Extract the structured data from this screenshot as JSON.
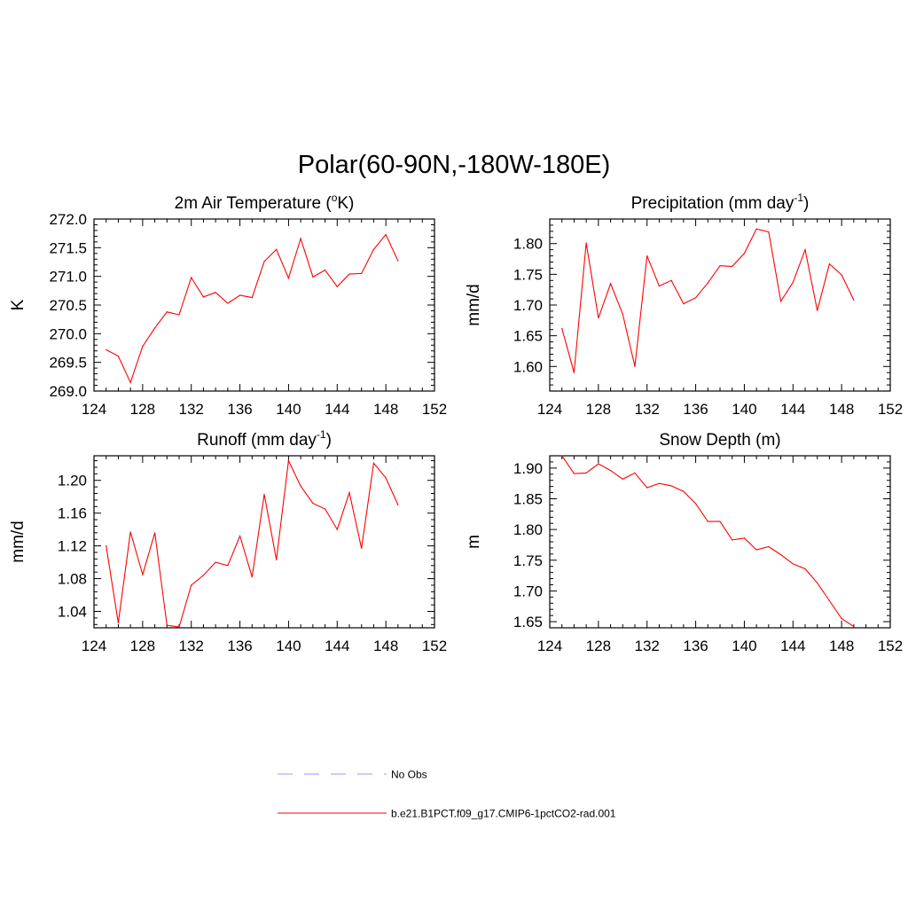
{
  "title": "Polar(60-90N,-180W-180E)",
  "chart_data": [
    {
      "type": "line",
      "title_main": "2m Air Temperature (",
      "title_sup_prefix": "o",
      "title_rest": "K)",
      "title_tail": "",
      "ylabel": "K",
      "xlim": [
        124,
        152
      ],
      "ylim": [
        269.0,
        272.0
      ],
      "xticks": [
        124,
        128,
        132,
        136,
        140,
        144,
        148,
        152
      ],
      "xtick_labels": [
        "124",
        "128",
        "132",
        "136",
        "140",
        "144",
        "148",
        "152"
      ],
      "yticks": [
        269.0,
        269.5,
        270.0,
        270.5,
        271.0,
        271.5,
        272.0
      ],
      "ytick_labels": [
        "269.0",
        "269.5",
        "270.0",
        "270.5",
        "271.0",
        "271.5",
        "272.0"
      ],
      "grid": false,
      "series": [
        {
          "name": "b.e21.B1PCT.f09_g17.CMIP6-1pctCO2-rad.001",
          "color": "#ff0000",
          "x": [
            125,
            126,
            127,
            128,
            129,
            130,
            131,
            132,
            133,
            134,
            135,
            136,
            137,
            138,
            139,
            140,
            141,
            142,
            143,
            144,
            145,
            146,
            147,
            148,
            149
          ],
          "y": [
            269.72,
            269.61,
            269.15,
            269.78,
            270.1,
            270.38,
            270.33,
            270.98,
            270.64,
            270.72,
            270.53,
            270.67,
            270.63,
            271.26,
            271.47,
            270.97,
            271.66,
            270.99,
            271.11,
            270.82,
            271.04,
            271.05,
            271.47,
            271.73,
            271.27
          ]
        }
      ]
    },
    {
      "type": "line",
      "title_main": "Precipitation (mm day",
      "title_sup_prefix": "-1",
      "title_rest": ")",
      "title_tail": "",
      "ylabel": "mm/d",
      "xlim": [
        124,
        152
      ],
      "ylim": [
        1.56,
        1.84
      ],
      "xticks": [
        124,
        128,
        132,
        136,
        140,
        144,
        148,
        152
      ],
      "xtick_labels": [
        "124",
        "128",
        "132",
        "136",
        "140",
        "144",
        "148",
        "152"
      ],
      "yticks": [
        1.6,
        1.65,
        1.7,
        1.75,
        1.8
      ],
      "ytick_labels": [
        "1.60",
        "1.65",
        "1.70",
        "1.75",
        "1.80"
      ],
      "grid": false,
      "series": [
        {
          "name": "b.e21.B1PCT.f09_g17.CMIP6-1pctCO2-rad.001",
          "color": "#ff0000",
          "x": [
            125,
            126,
            127,
            128,
            129,
            130,
            131,
            132,
            133,
            134,
            135,
            136,
            137,
            138,
            139,
            140,
            141,
            142,
            143,
            144,
            145,
            146,
            147,
            148,
            149
          ],
          "y": [
            1.662,
            1.59,
            1.801,
            1.679,
            1.735,
            1.685,
            1.6,
            1.78,
            1.731,
            1.74,
            1.702,
            1.712,
            1.736,
            1.764,
            1.763,
            1.784,
            1.824,
            1.819,
            1.706,
            1.737,
            1.79,
            1.691,
            1.767,
            1.749,
            1.708
          ]
        }
      ]
    },
    {
      "type": "line",
      "title_main": "Runoff (mm day",
      "title_sup_prefix": "-1",
      "title_rest": ")",
      "title_tail": "",
      "ylabel": "mm/d",
      "xlim": [
        124,
        152
      ],
      "ylim": [
        1.02,
        1.23
      ],
      "xticks": [
        124,
        128,
        132,
        136,
        140,
        144,
        148,
        152
      ],
      "xtick_labels": [
        "124",
        "128",
        "132",
        "136",
        "140",
        "144",
        "148",
        "152"
      ],
      "yticks": [
        1.04,
        1.08,
        1.12,
        1.16,
        1.2
      ],
      "ytick_labels": [
        "1.04",
        "1.08",
        "1.12",
        "1.16",
        "1.20"
      ],
      "grid": false,
      "series": [
        {
          "name": "b.e21.B1PCT.f09_g17.CMIP6-1pctCO2-rad.001",
          "color": "#ff0000",
          "x": [
            125,
            126,
            127,
            128,
            129,
            130,
            131,
            132,
            133,
            134,
            135,
            136,
            137,
            138,
            139,
            140,
            141,
            142,
            143,
            144,
            145,
            146,
            147,
            148,
            149
          ],
          "y": [
            1.12,
            1.026,
            1.137,
            1.085,
            1.136,
            1.023,
            1.021,
            1.072,
            1.084,
            1.1,
            1.096,
            1.132,
            1.082,
            1.183,
            1.103,
            1.224,
            1.193,
            1.172,
            1.165,
            1.14,
            1.185,
            1.117,
            1.221,
            1.203,
            1.17
          ]
        }
      ]
    },
    {
      "type": "line",
      "title_main": "Snow Depth (m)",
      "title_sup_prefix": "",
      "title_rest": "",
      "title_tail": "",
      "ylabel": "m",
      "xlim": [
        124,
        152
      ],
      "ylim": [
        1.64,
        1.92
      ],
      "xticks": [
        124,
        128,
        132,
        136,
        140,
        144,
        148,
        152
      ],
      "xtick_labels": [
        "124",
        "128",
        "132",
        "136",
        "140",
        "144",
        "148",
        "152"
      ],
      "yticks": [
        1.65,
        1.7,
        1.75,
        1.8,
        1.85,
        1.9
      ],
      "ytick_labels": [
        "1.65",
        "1.70",
        "1.75",
        "1.80",
        "1.85",
        "1.90"
      ],
      "grid": false,
      "series": [
        {
          "name": "b.e21.B1PCT.f09_g17.CMIP6-1pctCO2-rad.001",
          "color": "#ff0000",
          "x": [
            125,
            126,
            127,
            128,
            129,
            130,
            131,
            132,
            133,
            134,
            135,
            136,
            137,
            138,
            139,
            140,
            141,
            142,
            143,
            144,
            145,
            146,
            147,
            148,
            149
          ],
          "y": [
            1.92,
            1.891,
            1.892,
            1.907,
            1.896,
            1.882,
            1.892,
            1.868,
            1.875,
            1.871,
            1.862,
            1.842,
            1.813,
            1.813,
            1.783,
            1.786,
            1.767,
            1.772,
            1.759,
            1.744,
            1.736,
            1.713,
            1.684,
            1.655,
            1.642
          ]
        }
      ]
    }
  ],
  "legend": {
    "placement": "bottom-center",
    "items": [
      {
        "label": "No Obs",
        "color": "#aaaaff",
        "style": "dashed"
      },
      {
        "label": "b.e21.B1PCT.f09_g17.CMIP6-1pctCO2-rad.001",
        "color": "#ff0000",
        "style": "solid"
      }
    ]
  }
}
